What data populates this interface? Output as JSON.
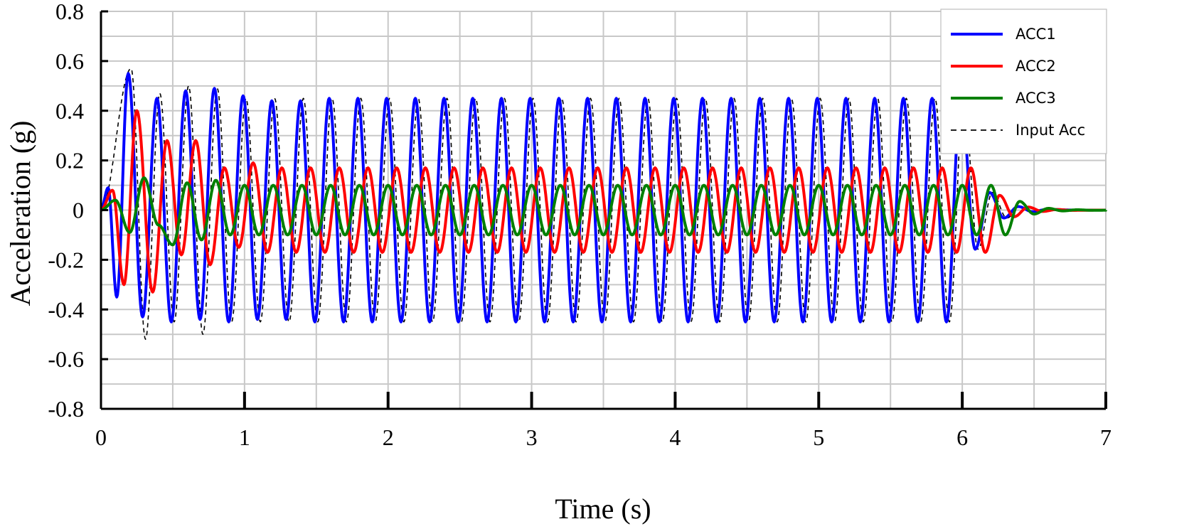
{
  "chart_data": {
    "type": "line",
    "title": "",
    "xlabel": "Time (s)",
    "ylabel": "Acceleration (g)",
    "xlim": [
      0,
      7
    ],
    "ylim": [
      -0.8,
      0.8
    ],
    "grid": true,
    "legend_position": "top-right",
    "xticks": [
      "0",
      "1",
      "2",
      "3",
      "4",
      "5",
      "6",
      "7"
    ],
    "yticks": [
      "0.8",
      "0.6",
      "0.4",
      "0.2",
      "0",
      "-0.2",
      "-0.4",
      "-0.6",
      "-0.8"
    ],
    "series": [
      {
        "name": "ACC1",
        "color": "#0000ff",
        "style": "solid",
        "sampled_peaks": {
          "t": [
            0.05,
            0.11,
            0.19,
            0.29,
            0.39,
            0.49,
            0.59,
            0.69,
            0.79,
            0.89,
            0.99,
            1.09,
            1.19,
            1.29,
            1.39
          ],
          "y": [
            0.09,
            -0.35,
            0.55,
            -0.43,
            0.45,
            -0.45,
            0.48,
            -0.44,
            0.49,
            -0.45,
            0.46,
            -0.44,
            0.44,
            -0.44,
            0.44
          ]
        },
        "steady_amplitude": 0.45,
        "cycle_period": 0.2,
        "end_time": 6.05
      },
      {
        "name": "ACC2",
        "color": "#ff0000",
        "style": "solid",
        "sampled_peaks": {
          "t": [
            0.08,
            0.16,
            0.25,
            0.36,
            0.46,
            0.56,
            0.66,
            0.76,
            0.86,
            0.96,
            1.06
          ],
          "y": [
            0.08,
            -0.3,
            0.4,
            -0.33,
            0.28,
            -0.18,
            0.28,
            -0.22,
            0.17,
            -0.15,
            0.19
          ]
        },
        "steady_amplitude": 0.17,
        "cycle_period": 0.2,
        "end_time": 6.25
      },
      {
        "name": "ACC3",
        "color": "#008000",
        "style": "solid",
        "sampled_peaks": {
          "t": [
            0.1,
            0.2,
            0.3,
            0.4,
            0.5,
            0.6,
            0.7,
            0.8
          ],
          "y": [
            0.04,
            -0.09,
            0.13,
            -0.06,
            -0.14,
            0.11,
            -0.12,
            0.12
          ]
        },
        "steady_amplitude": 0.1,
        "cycle_period": 0.2,
        "end_time": 6.3
      },
      {
        "name": "Input Acc",
        "color": "#000000",
        "style": "dashed",
        "sampled_peaks": {
          "t": [
            0.21,
            0.31,
            0.41,
            0.51,
            0.61,
            0.71,
            0.81
          ],
          "y": [
            0.57,
            -0.52,
            0.47,
            -0.45,
            0.5,
            -0.5,
            0.49
          ]
        },
        "steady_amplitude": 0.45,
        "cycle_period": 0.2,
        "end_time": 6.05
      }
    ]
  }
}
